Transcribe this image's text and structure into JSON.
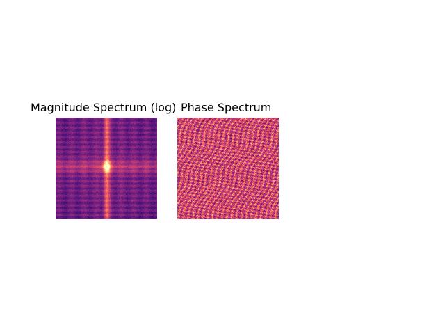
{
  "figure": {
    "panels": [
      {
        "title": "Magnitude Spectrum (log)",
        "colormap": "magma"
      },
      {
        "title": "Phase Spectrum",
        "colormap": "magma"
      }
    ]
  }
}
